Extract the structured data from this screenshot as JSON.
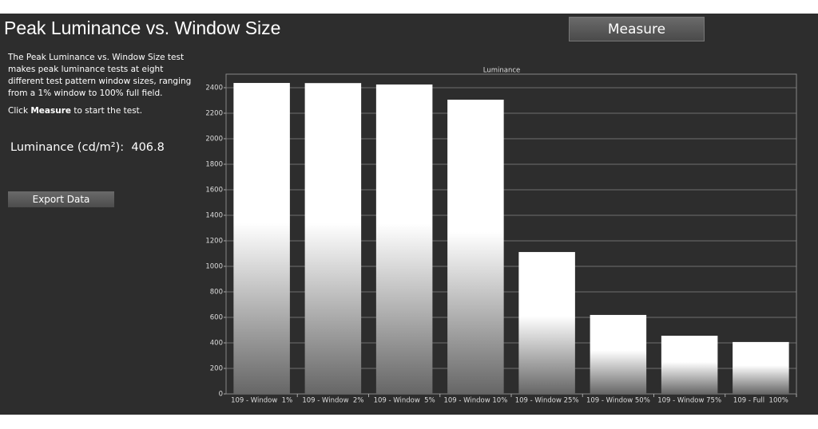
{
  "header": {
    "title": "Peak Luminance vs. Window Size",
    "measure_button": "Measure"
  },
  "description": "The Peak Luminance vs. Window Size test makes peak luminance tests at eight different test pattern window sizes, ranging from a 1% window to 100% full field.",
  "instruction": {
    "before": "Click ",
    "bold": "Measure",
    "after": " to start the test."
  },
  "readout": {
    "label": "Luminance (cd/m²):",
    "value": "406.8"
  },
  "export_button": "Export Data",
  "chart_data": {
    "type": "bar",
    "title": "Luminance",
    "categories": [
      "109 - Window  1%",
      "109 - Window  2%",
      "109 - Window  5%",
      "109 - Window 10%",
      "109 - Window 25%",
      "109 - Window 50%",
      "109 - Window 75%",
      "109 - Full  100%"
    ],
    "values": [
      2437,
      2436,
      2425,
      2306,
      1112,
      619,
      456,
      406.8
    ],
    "color": "#ffffff",
    "ylim": [
      0,
      2506
    ],
    "yticks": [
      0,
      200,
      400,
      600,
      800,
      1000,
      1200,
      1400,
      1600,
      1800,
      2000,
      2200,
      2400
    ],
    "grid": true
  }
}
